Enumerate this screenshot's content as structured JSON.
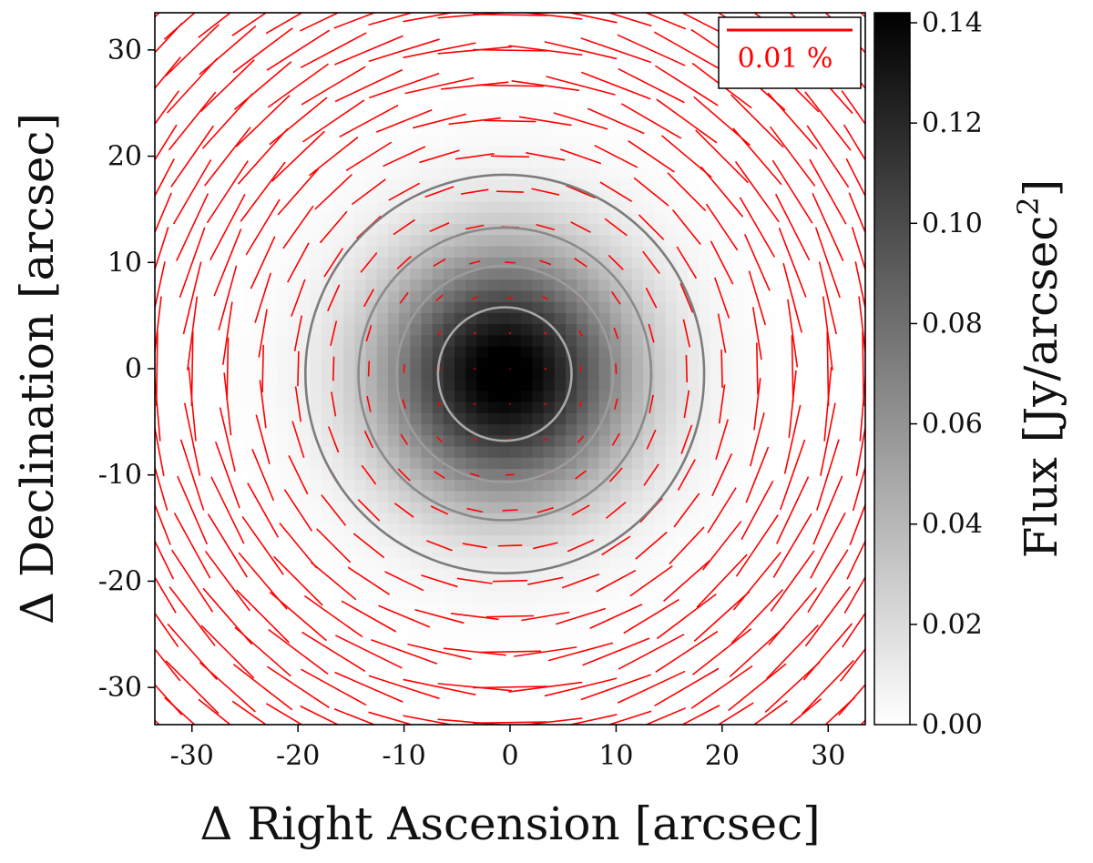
{
  "chart_data": {
    "type": "heatmap",
    "description_of_marks": "polarization vectors",
    "xlabel": "Δ Right Ascension [arcsec]",
    "ylabel": "Δ Declination [arcsec]",
    "xlim": [
      -33.5,
      33.5
    ],
    "ylim": [
      -33.5,
      33.5
    ],
    "xticks": [
      -30,
      -20,
      -10,
      0,
      10,
      20,
      30
    ],
    "xtick_labels": [
      "-30",
      "-20",
      "-10",
      "0",
      "10",
      "20",
      "30"
    ],
    "yticks": [
      -30,
      -20,
      -10,
      0,
      10,
      20,
      30
    ],
    "ytick_labels": [
      "-30",
      "-20",
      "-10",
      "0",
      "10",
      "20",
      "30"
    ],
    "colormap": "gray_r",
    "colorbar": {
      "label": "Flux [Jy/arcsec",
      "label_superscript": "2",
      "label_close": "]",
      "range": [
        0.0,
        0.142
      ],
      "ticks": [
        0.0,
        0.02,
        0.04,
        0.06,
        0.08,
        0.1,
        0.12,
        0.14
      ],
      "tick_labels": [
        "0.00",
        "0.02",
        "0.04",
        "0.06",
        "0.08",
        "0.10",
        "0.12",
        "0.14"
      ]
    },
    "source": {
      "center": [
        -0.5,
        -0.5
      ],
      "peak_flux": 0.142,
      "gaussian_sigma_arcsec": 8.0
    },
    "contours": [
      {
        "radius": 6.3,
        "color": "#a8a8a8"
      },
      {
        "radius": 10.2,
        "color": "#9c9c9c"
      },
      {
        "radius": 13.8,
        "color": "#8a8a8a"
      },
      {
        "radius": 18.8,
        "color": "#7c7c7c"
      }
    ],
    "vectors": {
      "color": "#ff0000",
      "grid_spacing": 3.33,
      "orientation": "azimuthal",
      "scale_reference_percent": 0.01
    },
    "legend": {
      "position": "top-right",
      "label": "0.01 %",
      "color": "#ff0000"
    }
  }
}
